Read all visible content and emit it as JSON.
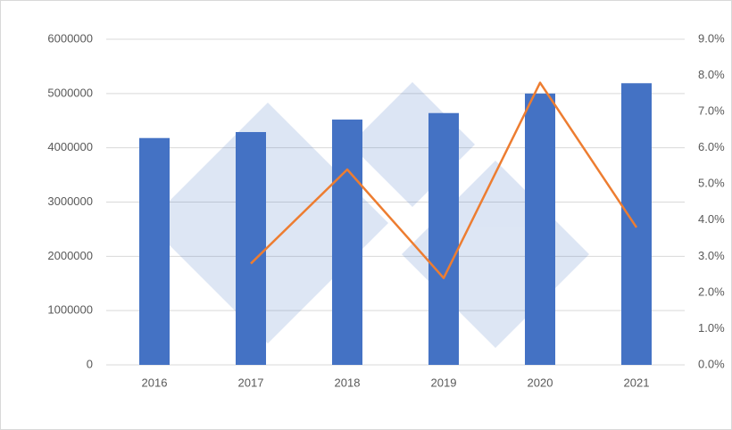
{
  "chart_data": {
    "type": "bar_line",
    "categories": [
      "2016",
      "2017",
      "2018",
      "2019",
      "2020",
      "2021"
    ],
    "series": [
      {
        "type": "bar",
        "color": "#4472c4",
        "values": [
          4180000,
          4290000,
          4520000,
          4640000,
          5000000,
          5190000
        ]
      },
      {
        "type": "line",
        "color": "#ed7d31",
        "axis": "y2",
        "values": [
          null,
          2.8,
          5.4,
          2.4,
          7.8,
          3.8
        ]
      }
    ],
    "ylim": [
      0,
      6000000
    ],
    "yticks": [
      0,
      1000000,
      2000000,
      3000000,
      4000000,
      5000000,
      6000000
    ],
    "y2lim": [
      0,
      9
    ],
    "y2ticks": [
      {
        "value": 0,
        "label": "0.0%"
      },
      {
        "value": 1,
        "label": "1.0%"
      },
      {
        "value": 2,
        "label": "2.0%"
      },
      {
        "value": 3,
        "label": "3.0%"
      },
      {
        "value": 4,
        "label": "4.0%"
      },
      {
        "value": 5,
        "label": "5.0%"
      },
      {
        "value": 6,
        "label": "6.0%"
      },
      {
        "value": 7,
        "label": "7.0%"
      },
      {
        "value": 8,
        "label": "8.0%"
      },
      {
        "value": 9,
        "label": "9.0%"
      }
    ],
    "grid": true
  }
}
